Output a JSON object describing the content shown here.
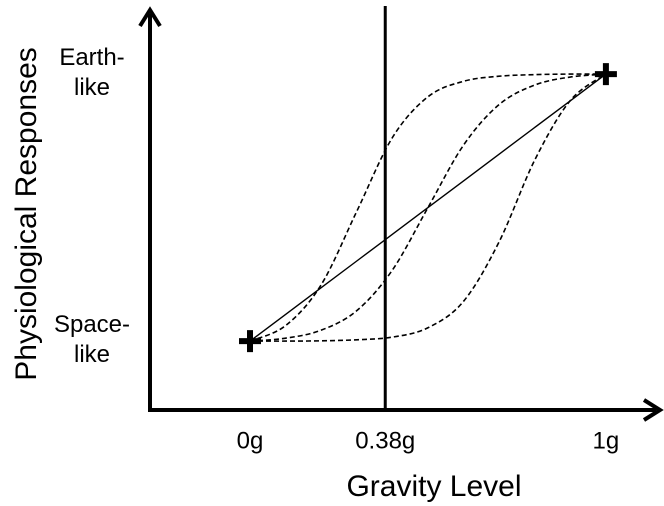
{
  "chart_data": {
    "type": "line",
    "xlabel": "Gravity Level",
    "ylabel": "Physiological Responses",
    "x": [
      0,
      0.1,
      0.2,
      0.3,
      0.4,
      0.5,
      0.6,
      0.7,
      0.8,
      0.9,
      1
    ],
    "series": [
      {
        "color": "#000000",
        "dashed": false,
        "values": [
          0,
          0.1,
          0.2,
          0.3,
          0.4,
          0.5,
          0.6,
          0.7,
          0.8,
          0.9,
          1
        ]
      },
      {
        "color": "#000000",
        "dashed": true,
        "values": [
          0,
          0.058,
          0.211,
          0.486,
          0.762,
          0.915,
          0.973,
          0.992,
          0.998,
          1,
          1
        ]
      },
      {
        "color": "#000000",
        "dashed": true,
        "values": [
          0,
          0.011,
          0.041,
          0.114,
          0.266,
          0.5,
          0.734,
          0.886,
          0.959,
          0.989,
          1
        ]
      },
      {
        "color": "#000000",
        "dashed": true,
        "values": [
          0,
          0,
          0.001,
          0.005,
          0.015,
          0.05,
          0.149,
          0.372,
          0.678,
          0.901,
          1
        ]
      }
    ],
    "xlim": [
      -0.281,
      1.152
    ],
    "ylim": [
      -0.258,
      1.24
    ],
    "xticks": [
      {
        "value": 0,
        "label": "0g"
      },
      {
        "value": 0.38,
        "label": "0.38g"
      },
      {
        "value": 1,
        "label": "1g"
      }
    ],
    "yticks": [
      {
        "value": 0,
        "label": "Space-like"
      },
      {
        "value": 1,
        "label": "Earth-like"
      }
    ],
    "reference_line_x": 0.38
  }
}
